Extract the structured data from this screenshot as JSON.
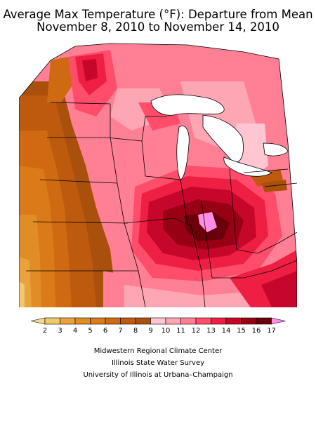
{
  "header": {
    "title": "Average Max Temperature (°F): Departure from Mean",
    "subtitle": "November 8, 2010 to November 14, 2010"
  },
  "legend": {
    "labels": [
      "2",
      "3",
      "4",
      "5",
      "6",
      "7",
      "8",
      "9",
      "10",
      "11",
      "12",
      "13",
      "14",
      "15",
      "16",
      "17"
    ],
    "colors": [
      "#f2c86e",
      "#e9a23c",
      "#e08d25",
      "#da7a18",
      "#cf6a12",
      "#bd5a0d",
      "#a9500c",
      "#ffc6d2",
      "#ffa6b5",
      "#ff7f95",
      "#ff4d6b",
      "#ef1f44",
      "#c6072b",
      "#980015",
      "#6a0009"
    ],
    "under_color": "#f6d98e",
    "over_color": "#ff8de8"
  },
  "credits": [
    "Midwestern Regional Climate Center",
    "Illinois State Water Survey",
    "University of Illinois at Urbana–Champaign"
  ]
}
